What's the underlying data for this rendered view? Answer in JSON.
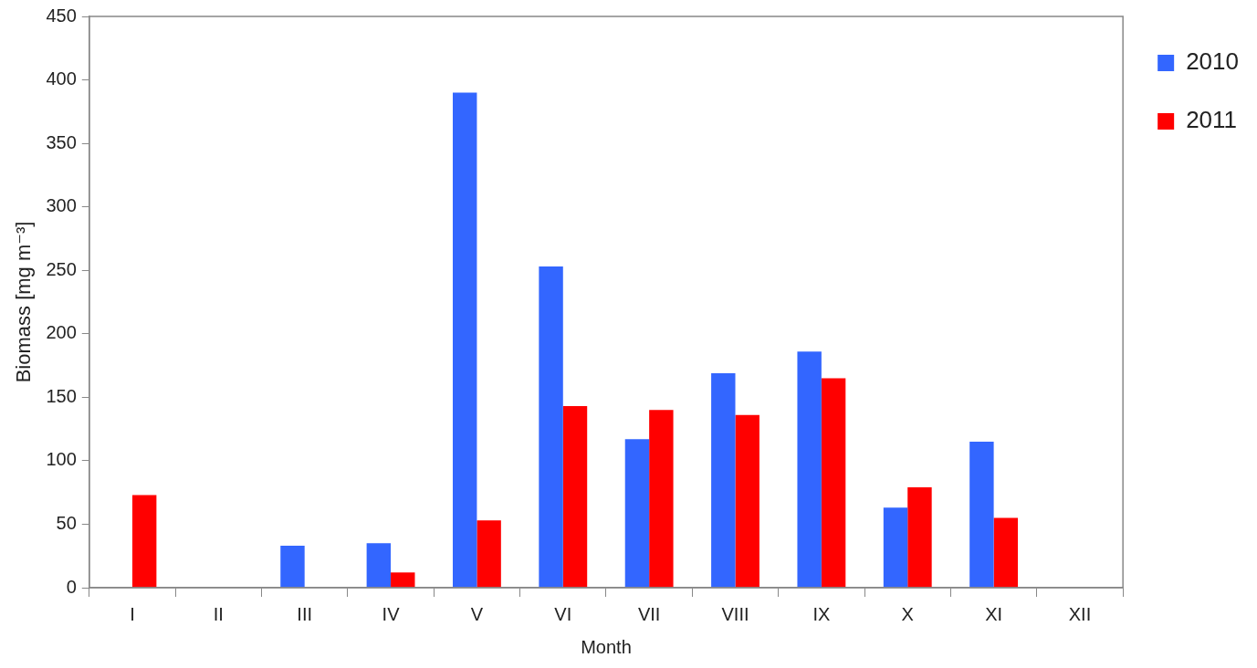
{
  "chart_data": {
    "type": "bar",
    "xlabel": "Month",
    "ylabel": "Biomass [mg m⁻³]",
    "categories": [
      "I",
      "II",
      "III",
      "IV",
      "V",
      "VI",
      "VII",
      "VIII",
      "IX",
      "X",
      "XI",
      "XII"
    ],
    "series": [
      {
        "name": "2010",
        "color": "#3366ff",
        "values": [
          null,
          null,
          33,
          35,
          390,
          253,
          117,
          169,
          186,
          63,
          115,
          null
        ]
      },
      {
        "name": "2011",
        "color": "#ff0000",
        "values": [
          73,
          null,
          null,
          12,
          53,
          143,
          140,
          136,
          165,
          79,
          55,
          null
        ]
      }
    ],
    "ylim": [
      0,
      450
    ],
    "yticks": [
      0,
      50,
      100,
      150,
      200,
      250,
      300,
      350,
      400,
      450
    ],
    "grid": false,
    "legend": "right"
  }
}
